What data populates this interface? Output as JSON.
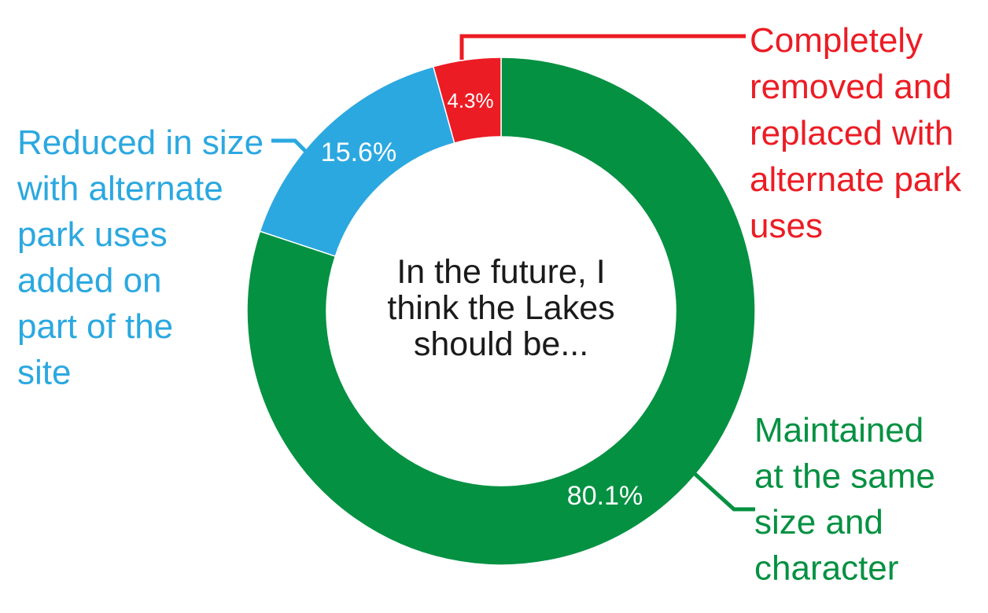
{
  "chart_data": {
    "type": "pie",
    "variant": "donut",
    "center_text": [
      "In the future, I",
      "think the Lakes",
      "should be..."
    ],
    "slices": [
      {
        "value": 80.1,
        "value_label": "80.1%",
        "label_lines": [
          "Maintained",
          "at the same",
          "size and",
          "character"
        ],
        "color": "#049142"
      },
      {
        "value": 15.6,
        "value_label": "15.6%",
        "label_lines": [
          "Reduced in size",
          "with alternate",
          "park uses",
          "added on",
          "part of the",
          "site"
        ],
        "color": "#2ba8e0"
      },
      {
        "value": 4.3,
        "value_label": "4.3%",
        "label_lines": [
          "Completely",
          "removed and",
          "replaced with",
          "alternate park",
          "uses"
        ],
        "color": "#ec1c24"
      }
    ],
    "start": "12 o'clock",
    "direction": "clockwise",
    "legend": "none"
  }
}
